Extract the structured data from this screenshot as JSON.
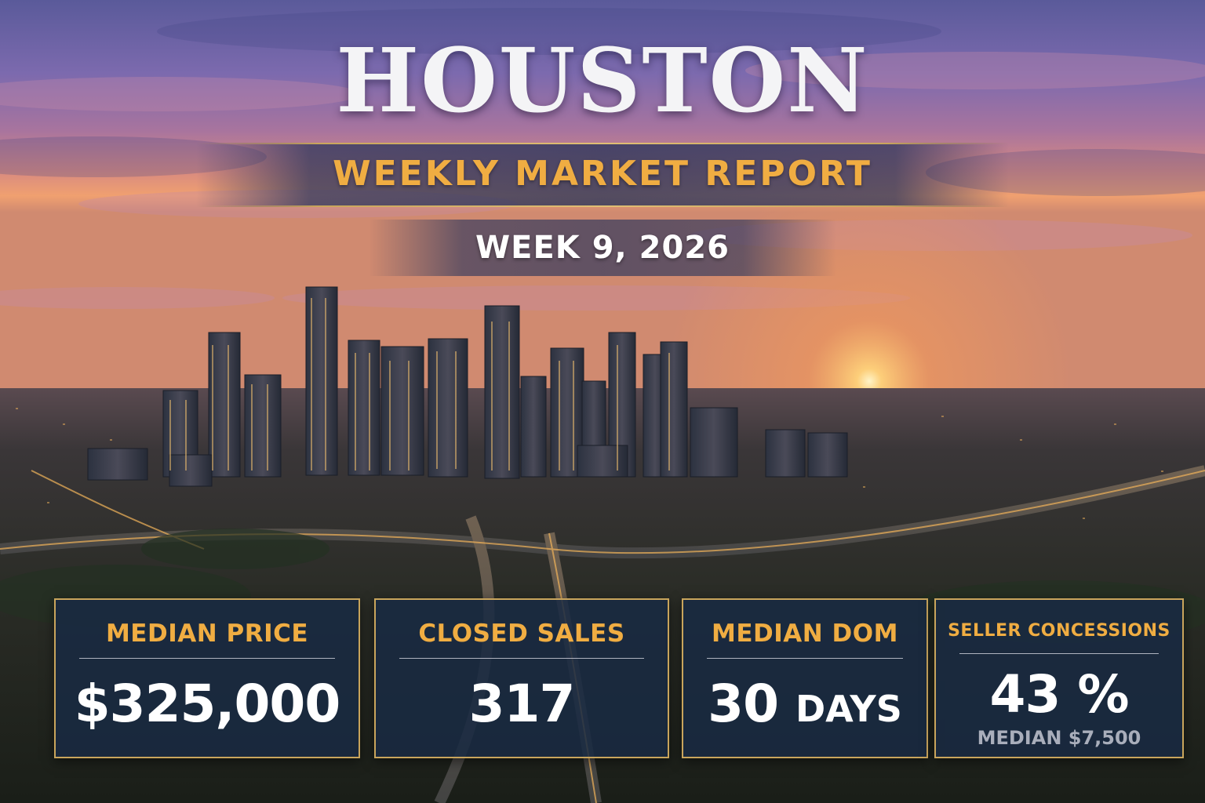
{
  "header": {
    "title": "HOUSTON",
    "subtitle": "WEEKLY MARKET REPORT",
    "week": "WEEK 9, 2026"
  },
  "stats": {
    "median_price": {
      "label": "MEDIAN PRICE",
      "value": "$325,000"
    },
    "closed_sales": {
      "label": "CLOSED SALES",
      "value": "317"
    },
    "median_dom": {
      "label": "MEDIAN DOM",
      "value": "30",
      "unit": "DAYS"
    },
    "seller_concessions": {
      "label": "SELLER CONCESSIONS",
      "value": "43 %",
      "note": "MEDIAN $7,500"
    }
  },
  "colors": {
    "accent_gold": "#f0ad42",
    "border_gold": "#c9a55c",
    "card_navy": "#182a42",
    "title_white": "#f4f4f6",
    "note_gray": "#a9aebb"
  }
}
